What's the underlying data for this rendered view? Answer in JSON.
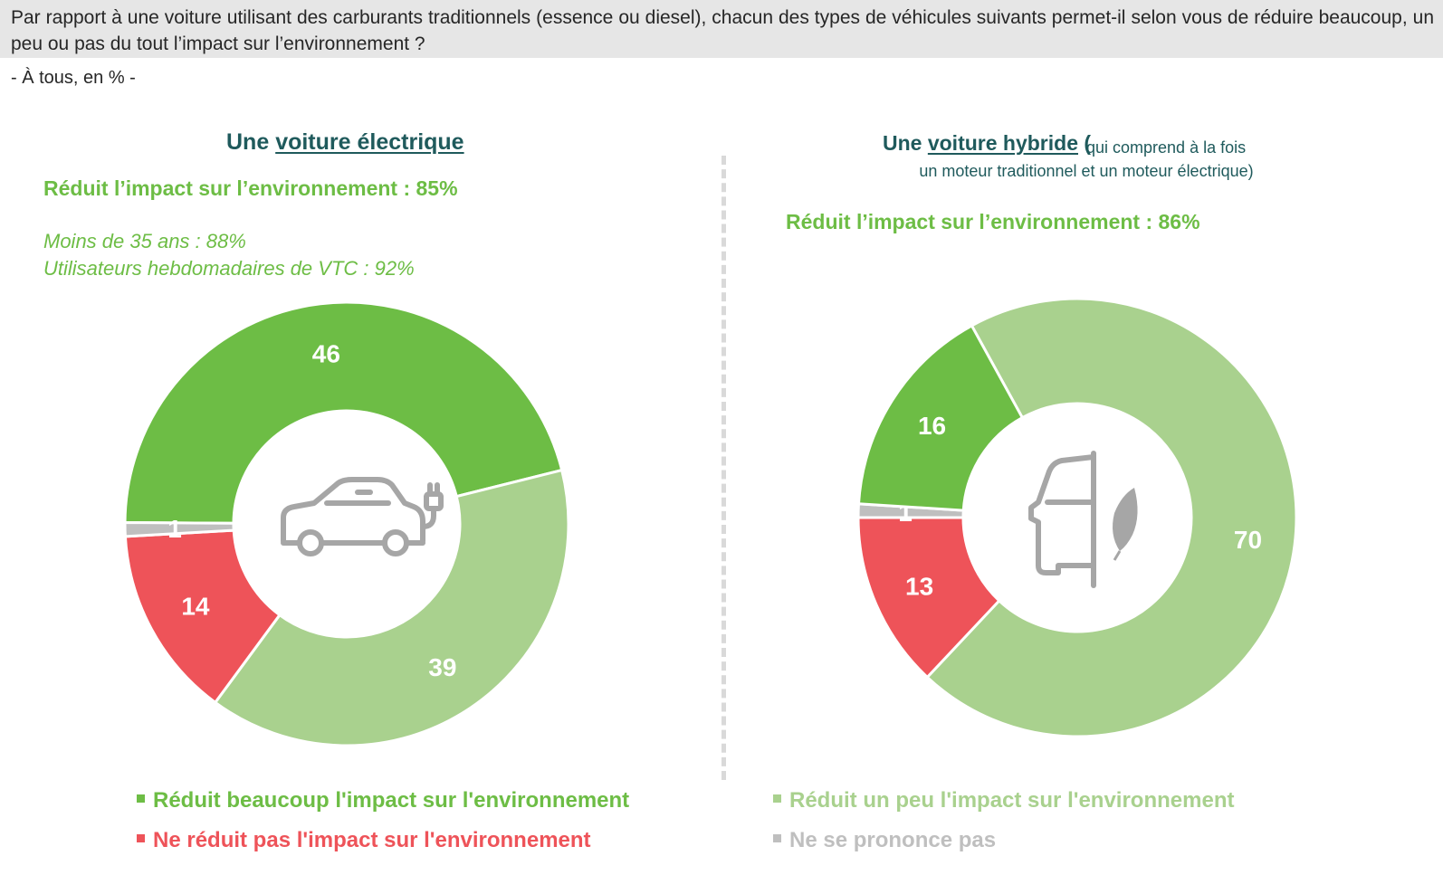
{
  "question": "Par rapport à une voiture utilisant des carburants traditionnels (essence ou diesel), chacun des types de véhicules suivants permet-il selon vous de réduire beaucoup, un peu ou pas du tout l’impact sur l’environnement ?",
  "base": "- À tous, en % -",
  "left": {
    "title_prefix": "Une ",
    "title_underlined": "voiture électrique",
    "reduit": "Réduit l’impact sur l’environnement : 85%",
    "sub1": "Moins de 35 ans : 88%",
    "sub2": "Utilisateurs hebdomadaires de VTC : 92%",
    "icon": "electric-car-icon"
  },
  "right": {
    "title_prefix": "Une ",
    "title_underlined": "voiture hybride",
    "title_paren_open": "(",
    "title_note_line1": "qui comprend à la fois",
    "title_note_line2": "un moteur traditionnel et un moteur électrique)",
    "reduit": "Réduit l’impact sur l’environnement : 86%",
    "icon": "hybrid-car-leaf-icon"
  },
  "legend": {
    "beaucoup": "Réduit beaucoup l'impact sur l'environnement",
    "un_peu": "Réduit un peu l'impact sur l'environnement",
    "pas": "Ne réduit pas l'impact sur l'environnement",
    "nsp": "Ne se prononce pas"
  },
  "colors": {
    "beaucoup": "#6dbd45",
    "un_peu": "#a9d18e",
    "pas": "#ee5359",
    "nsp": "#bfbfbf",
    "title": "#1f5a5c"
  },
  "chart_data": [
    {
      "type": "pie",
      "name": "Une voiture électrique",
      "categories": [
        "Réduit beaucoup l'impact sur l'environnement",
        "Réduit un peu l'impact sur l'environnement",
        "Ne réduit pas l'impact sur l'environnement",
        "Ne se prononce pas"
      ],
      "values": [
        46,
        39,
        14,
        1
      ],
      "labels": [
        "46",
        "39",
        "14",
        "1"
      ]
    },
    {
      "type": "pie",
      "name": "Une voiture hybride",
      "categories": [
        "Réduit un peu l'impact sur l'environnement",
        "Ne réduit pas l'impact sur l'environnement",
        "Ne se prononce pas",
        "Réduit beaucoup l'impact sur l'environnement"
      ],
      "values": [
        70,
        13,
        1,
        16
      ],
      "labels": [
        "70",
        "13",
        "1",
        "16"
      ]
    }
  ]
}
